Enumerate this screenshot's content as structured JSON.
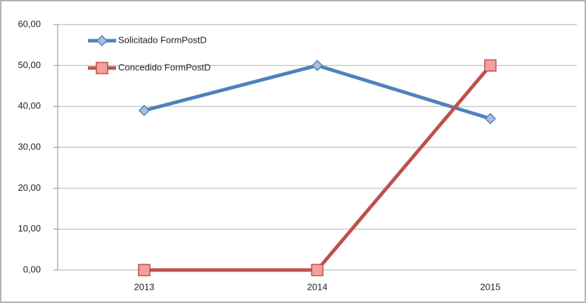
{
  "chart_data": {
    "type": "line",
    "categories": [
      "2013",
      "2014",
      "2015"
    ],
    "series": [
      {
        "name": "Solicitado FormPostD",
        "color": "#4f81bd",
        "values": [
          39,
          50,
          37
        ]
      },
      {
        "name": "Concedido FormPostD",
        "color": "#c0504d",
        "values": [
          0,
          0,
          50
        ]
      }
    ],
    "ylim": [
      0,
      60
    ],
    "yticks": [
      {
        "value": 0,
        "label": "0,00"
      },
      {
        "value": 10,
        "label": "10,00"
      },
      {
        "value": 20,
        "label": "20,00"
      },
      {
        "value": 30,
        "label": "30,00"
      },
      {
        "value": 40,
        "label": "40,00"
      },
      {
        "value": 50,
        "label": "50,00"
      },
      {
        "value": 60,
        "label": "60,00"
      }
    ],
    "grid": true,
    "legend": "top-left"
  }
}
